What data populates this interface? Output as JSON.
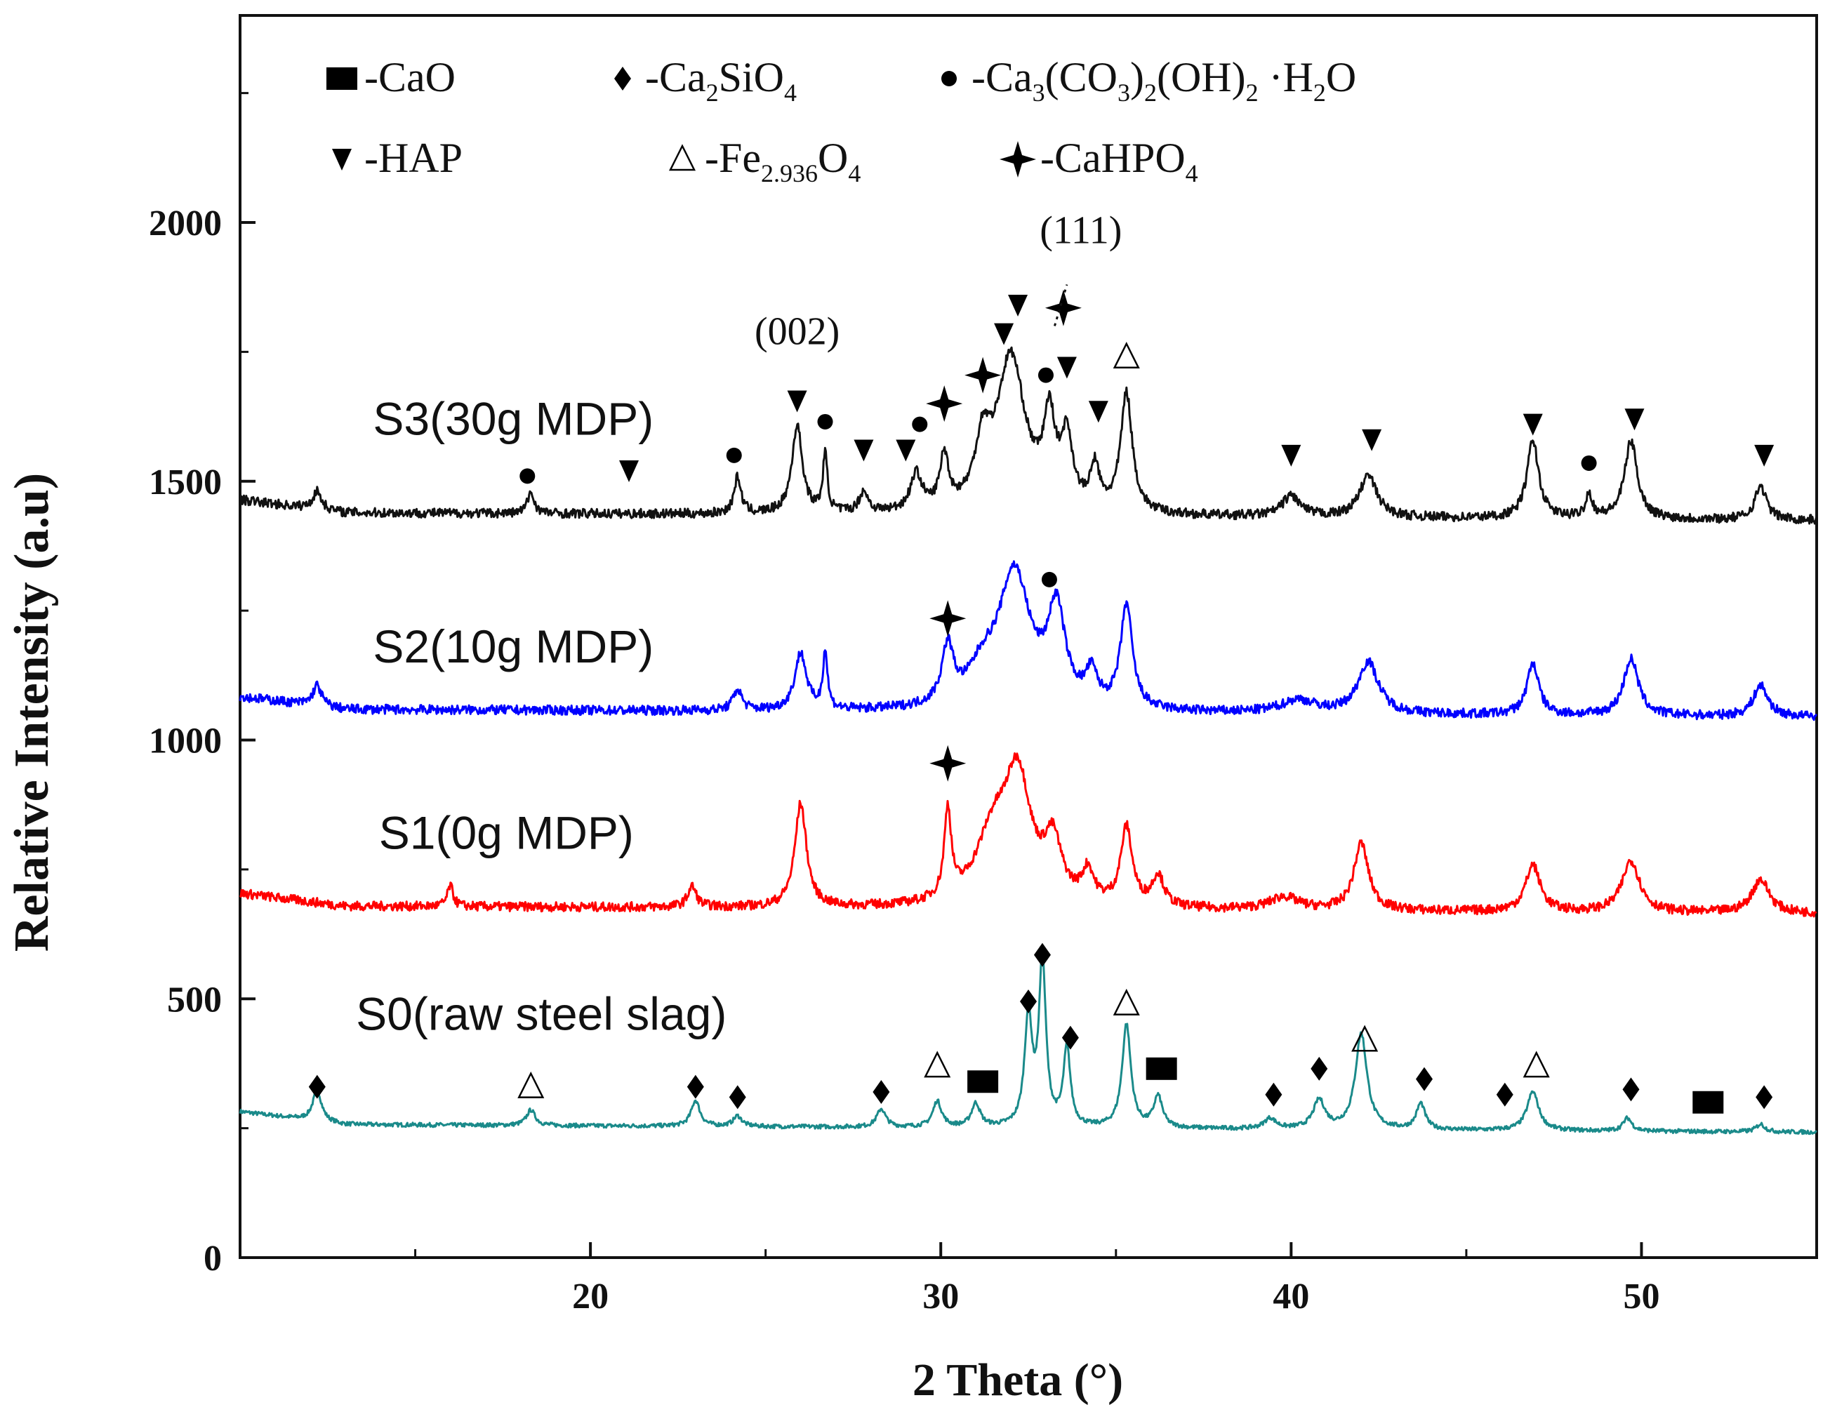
{
  "chart_data": {
    "type": "line",
    "title": "",
    "xlabel": "2 Theta (°)",
    "ylabel": "Relative Intensity (a.u)",
    "xlim": [
      10,
      55
    ],
    "ylim": [
      0,
      2400
    ],
    "xticks": [
      20,
      30,
      40,
      50
    ],
    "yticks": [
      0,
      500,
      1000,
      1500,
      2000
    ],
    "grid": false,
    "legend": {
      "placement": "top-left",
      "entries": [
        {
          "symbol": "square",
          "text": "-CaO"
        },
        {
          "symbol": "diamond",
          "text": "-Ca",
          "subs": [
            [
              "2",
              "SiO"
            ],
            [
              "4",
              ""
            ]
          ]
        },
        {
          "symbol": "dot",
          "text": "-Ca",
          "subs": [
            [
              "3",
              "(CO"
            ],
            [
              "3",
              ")"
            ],
            [
              "2",
              "(OH)"
            ],
            [
              "2",
              " ·H"
            ],
            [
              "2",
              "O"
            ]
          ]
        },
        {
          "symbol": "down-triangle",
          "text": "-HAP"
        },
        {
          "symbol": "open-triangle",
          "text": "-Fe",
          "subs": [
            [
              "2.936",
              "O"
            ],
            [
              "4",
              ""
            ]
          ]
        },
        {
          "symbol": "star",
          "text": "-CaHPO",
          "subs": [
            [
              "4",
              ""
            ]
          ]
        }
      ]
    },
    "series": [
      {
        "name": "S0(raw steel slag)",
        "color": "#1a8a8a",
        "baseline": 258,
        "noise": 4,
        "peaks": [
          [
            12.2,
            60,
            0.15
          ],
          [
            18.3,
            30,
            0.15
          ],
          [
            23,
            50,
            0.15
          ],
          [
            24.2,
            20,
            0.15
          ],
          [
            28.3,
            35,
            0.15
          ],
          [
            29.9,
            50,
            0.15
          ],
          [
            31,
            45,
            0.15
          ],
          [
            32.5,
            210,
            0.13
          ],
          [
            32.9,
            315,
            0.12
          ],
          [
            33.6,
            150,
            0.12
          ],
          [
            35.3,
            200,
            0.15
          ],
          [
            36.2,
            60,
            0.15
          ],
          [
            39.4,
            20,
            0.2
          ],
          [
            40.8,
            55,
            0.2
          ],
          [
            42,
            185,
            0.2
          ],
          [
            43.7,
            50,
            0.15
          ],
          [
            46.9,
            75,
            0.2
          ],
          [
            49.6,
            25,
            0.15
          ],
          [
            53.4,
            15,
            0.15
          ]
        ]
      },
      {
        "name": "S1(0g MDP)",
        "color": "#ff0000",
        "baseline": 680,
        "noise": 9,
        "peaks": [
          [
            16,
            40,
            0.1
          ],
          [
            22.9,
            40,
            0.15
          ],
          [
            26,
            200,
            0.2
          ],
          [
            30.2,
            170,
            0.12
          ],
          [
            31.5,
            130,
            0.6
          ],
          [
            32.2,
            230,
            0.45
          ],
          [
            33.2,
            110,
            0.3
          ],
          [
            34.2,
            60,
            0.2
          ],
          [
            35.3,
            150,
            0.2
          ],
          [
            36.2,
            60,
            0.2
          ],
          [
            39.8,
            25,
            0.5
          ],
          [
            42,
            130,
            0.25
          ],
          [
            46.9,
            90,
            0.25
          ],
          [
            49.7,
            100,
            0.3
          ],
          [
            53.4,
            65,
            0.3
          ]
        ]
      },
      {
        "name": "S2(10g MDP)",
        "color": "#0000ff",
        "baseline": 1060,
        "noise": 9,
        "peaks": [
          [
            12.2,
            40,
            0.15
          ],
          [
            24.2,
            40,
            0.15
          ],
          [
            26,
            110,
            0.2
          ],
          [
            26.7,
            110,
            0.08
          ],
          [
            30.2,
            110,
            0.2
          ],
          [
            31.2,
            60,
            0.5
          ],
          [
            32.1,
            260,
            0.55
          ],
          [
            33.3,
            180,
            0.3
          ],
          [
            34.3,
            60,
            0.2
          ],
          [
            35.3,
            200,
            0.2
          ],
          [
            40.2,
            25,
            0.6
          ],
          [
            42.2,
            100,
            0.35
          ],
          [
            46.9,
            100,
            0.2
          ],
          [
            49.7,
            110,
            0.25
          ],
          [
            53.4,
            60,
            0.25
          ]
        ]
      },
      {
        "name": "S3(30g MDP)",
        "color": "#111111",
        "baseline": 1440,
        "noise": 9,
        "peaks": [
          [
            12.2,
            35,
            0.15
          ],
          [
            18.3,
            40,
            0.12
          ],
          [
            24.2,
            70,
            0.12
          ],
          [
            25.9,
            170,
            0.18
          ],
          [
            26.7,
            110,
            0.08
          ],
          [
            27.8,
            40,
            0.15
          ],
          [
            29.3,
            70,
            0.2
          ],
          [
            30.1,
            100,
            0.15
          ],
          [
            31.2,
            110,
            0.25
          ],
          [
            32,
            300,
            0.5
          ],
          [
            33.1,
            160,
            0.2
          ],
          [
            33.6,
            130,
            0.2
          ],
          [
            34.4,
            80,
            0.15
          ],
          [
            35.3,
            230,
            0.2
          ],
          [
            40,
            40,
            0.3
          ],
          [
            42.2,
            80,
            0.3
          ],
          [
            46.9,
            150,
            0.2
          ],
          [
            48.5,
            45,
            0.12
          ],
          [
            49.7,
            150,
            0.22
          ],
          [
            53.4,
            65,
            0.2
          ]
        ]
      }
    ],
    "series_labels": [
      {
        "text": "S3(30g MDP)",
        "x": 17.8,
        "y": 1590
      },
      {
        "text": "S2(10g MDP)",
        "x": 17.8,
        "y": 1150
      },
      {
        "text": "S1(0g MDP)",
        "x": 17.6,
        "y": 790
      },
      {
        "text": "S0(raw steel slag)",
        "x": 18.6,
        "y": 440
      }
    ],
    "annotations": [
      {
        "text": "(002)",
        "x": 25.9,
        "y": 1765
      },
      {
        "text": "(111)",
        "x": 34.0,
        "y": 1960
      }
    ],
    "markers": [
      {
        "symbol": "diamond",
        "x": 12.2,
        "y": 330
      },
      {
        "symbol": "open-triangle",
        "x": 18.3,
        "y": 330
      },
      {
        "symbol": "diamond",
        "x": 23,
        "y": 330
      },
      {
        "symbol": "diamond",
        "x": 24.2,
        "y": 310
      },
      {
        "symbol": "diamond",
        "x": 28.3,
        "y": 320
      },
      {
        "symbol": "open-triangle",
        "x": 29.9,
        "y": 370
      },
      {
        "symbol": "square",
        "x": 31.2,
        "y": 340
      },
      {
        "symbol": "diamond",
        "x": 32.5,
        "y": 495
      },
      {
        "symbol": "diamond",
        "x": 32.9,
        "y": 585
      },
      {
        "symbol": "diamond",
        "x": 33.7,
        "y": 425
      },
      {
        "symbol": "open-triangle",
        "x": 35.3,
        "y": 490
      },
      {
        "symbol": "square",
        "x": 36.3,
        "y": 365
      },
      {
        "symbol": "diamond",
        "x": 39.5,
        "y": 315
      },
      {
        "symbol": "diamond",
        "x": 40.8,
        "y": 365
      },
      {
        "symbol": "open-triangle",
        "x": 42.1,
        "y": 420
      },
      {
        "symbol": "diamond",
        "x": 43.8,
        "y": 345
      },
      {
        "symbol": "diamond",
        "x": 46.1,
        "y": 315
      },
      {
        "symbol": "open-triangle",
        "x": 47,
        "y": 370
      },
      {
        "symbol": "diamond",
        "x": 49.7,
        "y": 325
      },
      {
        "symbol": "square",
        "x": 51.9,
        "y": 300
      },
      {
        "symbol": "diamond",
        "x": 53.5,
        "y": 310
      },
      {
        "symbol": "star",
        "x": 30.2,
        "y": 955
      },
      {
        "symbol": "star",
        "x": 30.2,
        "y": 1235
      },
      {
        "symbol": "dot",
        "x": 33.1,
        "y": 1310
      },
      {
        "symbol": "dot",
        "x": 18.2,
        "y": 1510
      },
      {
        "symbol": "down-triangle",
        "x": 21.1,
        "y": 1520
      },
      {
        "symbol": "dot",
        "x": 24.1,
        "y": 1550
      },
      {
        "symbol": "down-triangle",
        "x": 25.9,
        "y": 1655
      },
      {
        "symbol": "dot",
        "x": 26.7,
        "y": 1615
      },
      {
        "symbol": "down-triangle",
        "x": 27.8,
        "y": 1560
      },
      {
        "symbol": "down-triangle",
        "x": 29,
        "y": 1560
      },
      {
        "symbol": "dot",
        "x": 29.4,
        "y": 1610
      },
      {
        "symbol": "star",
        "x": 30.1,
        "y": 1650
      },
      {
        "symbol": "star",
        "x": 31.2,
        "y": 1705
      },
      {
        "symbol": "down-triangle",
        "x": 31.8,
        "y": 1785
      },
      {
        "symbol": "down-triangle",
        "x": 32.2,
        "y": 1840
      },
      {
        "symbol": "dot",
        "x": 33,
        "y": 1705
      },
      {
        "symbol": "down-triangle",
        "x": 33.6,
        "y": 1720
      },
      {
        "symbol": "star",
        "x": 33.5,
        "y": 1835
      },
      {
        "symbol": "down-triangle",
        "x": 34.5,
        "y": 1635
      },
      {
        "symbol": "open-triangle",
        "x": 35.3,
        "y": 1740
      },
      {
        "symbol": "down-triangle",
        "x": 40,
        "y": 1550
      },
      {
        "symbol": "down-triangle",
        "x": 42.3,
        "y": 1580
      },
      {
        "symbol": "down-triangle",
        "x": 46.9,
        "y": 1610
      },
      {
        "symbol": "dot",
        "x": 48.5,
        "y": 1535
      },
      {
        "symbol": "down-triangle",
        "x": 49.8,
        "y": 1620
      },
      {
        "symbol": "down-triangle",
        "x": 53.5,
        "y": 1550
      }
    ]
  }
}
